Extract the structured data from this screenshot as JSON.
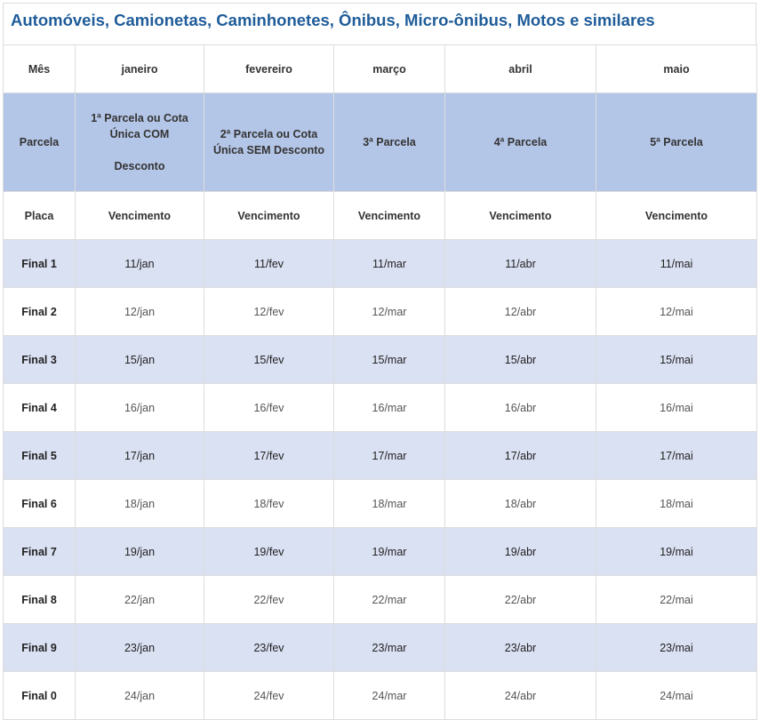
{
  "header": {
    "title": "Automóveis, Camionetas, Caminhonetes, Ônibus, Micro-ônibus, Motos e similares"
  },
  "table": {
    "header_rows": [
      [
        "Mês",
        "janeiro",
        "fevereiro",
        "março",
        "abril",
        "maio"
      ],
      [
        "Parcela",
        "1ª Parcela ou Cota Única COM\n\nDesconto",
        "2ª Parcela ou Cota Única SEM Desconto",
        "3ª Parcela",
        "4ª Parcela",
        "5ª Parcela"
      ],
      [
        "Placa",
        "Vencimento",
        "Vencimento",
        "Vencimento",
        "Vencimento",
        "Vencimento"
      ]
    ],
    "rows": [
      [
        "Final 1",
        "11/jan",
        "11/fev",
        "11/mar",
        "11/abr",
        "11/mai"
      ],
      [
        "Final 2",
        "12/jan",
        "12/fev",
        "12/mar",
        "12/abr",
        "12/mai"
      ],
      [
        "Final 3",
        "15/jan",
        "15/fev",
        "15/mar",
        "15/abr",
        "15/mai"
      ],
      [
        "Final 4",
        "16/jan",
        "16/fev",
        "16/mar",
        "16/abr",
        "16/mai"
      ],
      [
        "Final 5",
        "17/jan",
        "17/fev",
        "17/mar",
        "17/abr",
        "17/mai"
      ],
      [
        "Final 6",
        "18/jan",
        "18/fev",
        "18/mar",
        "18/abr",
        "18/mai"
      ],
      [
        "Final 7",
        "19/jan",
        "19/fev",
        "19/mar",
        "19/abr",
        "19/mai"
      ],
      [
        "Final 8",
        "22/jan",
        "22/fev",
        "22/mar",
        "22/abr",
        "22/mai"
      ],
      [
        "Final 9",
        "23/jan",
        "23/fev",
        "23/mar",
        "23/abr",
        "23/mai"
      ],
      [
        "Final 0",
        "24/jan",
        "24/fev",
        "24/mar",
        "24/abr",
        "24/mai"
      ]
    ]
  }
}
